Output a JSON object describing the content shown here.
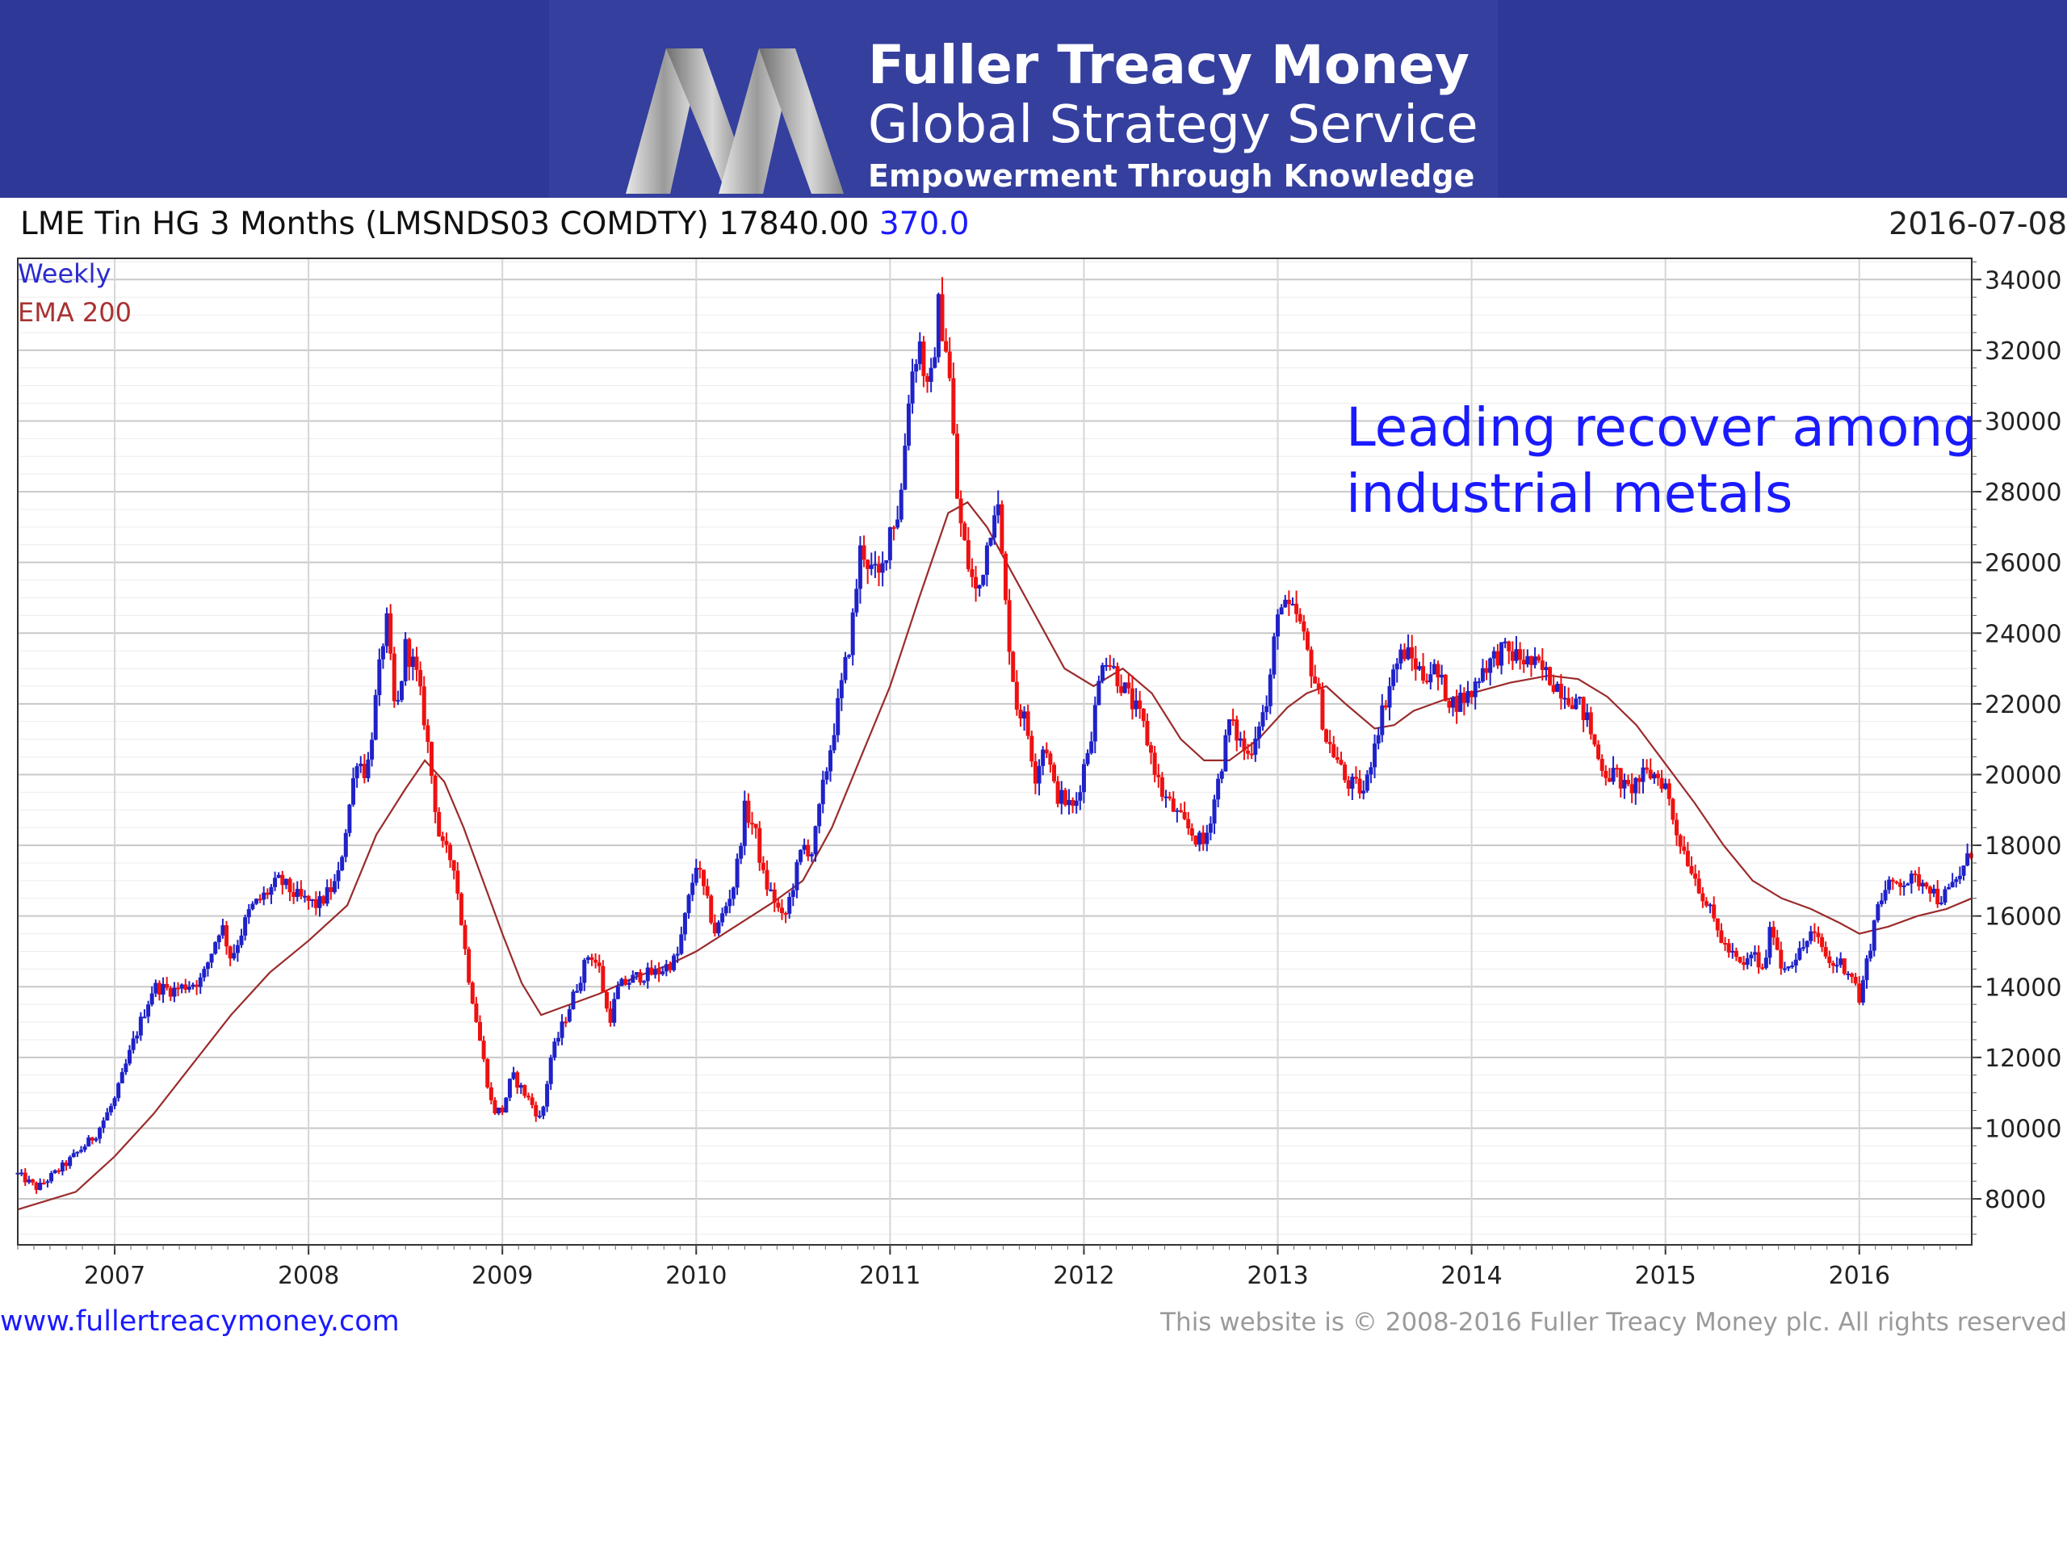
{
  "banner": {
    "brand_name": "Fuller Treacy Money",
    "service": "Global Strategy Service",
    "tagline": "Empowerment Through Knowledge",
    "logo_icon": "ftm-m-logo-icon"
  },
  "chart_header": {
    "instrument": "LME Tin HG  3 Months (LMSNDS03 COMDTY)",
    "last_price": "17840.00",
    "change": "370.0",
    "date": "2016-07-08"
  },
  "chart_data": {
    "type": "candlestick",
    "legend": {
      "period": "Weekly",
      "indicator": "EMA 200"
    },
    "annotation": [
      "Leading recover among",
      "industrial metals"
    ],
    "x_range": [
      2006.5,
      2016.58
    ],
    "ylim": [
      6700,
      34600
    ],
    "y_ticks": [
      8000,
      10000,
      12000,
      14000,
      16000,
      18000,
      20000,
      22000,
      24000,
      26000,
      28000,
      30000,
      32000,
      34000
    ],
    "x_ticks": [
      {
        "label": "2007",
        "value": 2007.0
      },
      {
        "label": "2008",
        "value": 2008.0
      },
      {
        "label": "2009",
        "value": 2009.0
      },
      {
        "label": "2010",
        "value": 2010.0
      },
      {
        "label": "2011",
        "value": 2011.0
      },
      {
        "label": "2012",
        "value": 2012.0
      },
      {
        "label": "2013",
        "value": 2013.0
      },
      {
        "label": "2014",
        "value": 2014.0
      },
      {
        "label": "2015",
        "value": 2015.0
      },
      {
        "label": "2016",
        "value": 2016.0
      }
    ],
    "colors": {
      "up": "#1f22c8",
      "down": "#ee1111",
      "ema": "#9b2b2b"
    },
    "price_path": [
      [
        2006.5,
        8700
      ],
      [
        2006.6,
        8300
      ],
      [
        2006.75,
        9000
      ],
      [
        2006.9,
        9800
      ],
      [
        2007.0,
        10800
      ],
      [
        2007.1,
        12500
      ],
      [
        2007.2,
        14000
      ],
      [
        2007.3,
        13900
      ],
      [
        2007.45,
        14200
      ],
      [
        2007.55,
        15800
      ],
      [
        2007.6,
        14800
      ],
      [
        2007.7,
        16200
      ],
      [
        2007.85,
        17000
      ],
      [
        2007.95,
        16500
      ],
      [
        2008.05,
        16300
      ],
      [
        2008.15,
        17000
      ],
      [
        2008.25,
        20500
      ],
      [
        2008.3,
        20000
      ],
      [
        2008.4,
        24500
      ],
      [
        2008.45,
        21500
      ],
      [
        2008.5,
        23600
      ],
      [
        2008.55,
        23000
      ],
      [
        2008.6,
        21500
      ],
      [
        2008.68,
        18000
      ],
      [
        2008.75,
        17500
      ],
      [
        2008.82,
        14500
      ],
      [
        2008.9,
        12000
      ],
      [
        2008.95,
        10500
      ],
      [
        2009.0,
        10500
      ],
      [
        2009.05,
        11500
      ],
      [
        2009.15,
        10700
      ],
      [
        2009.2,
        10200
      ],
      [
        2009.25,
        12000
      ],
      [
        2009.35,
        13500
      ],
      [
        2009.45,
        15000
      ],
      [
        2009.5,
        14500
      ],
      [
        2009.55,
        13000
      ],
      [
        2009.6,
        14000
      ],
      [
        2009.7,
        14300
      ],
      [
        2009.8,
        14400
      ],
      [
        2009.9,
        14800
      ],
      [
        2010.0,
        17500
      ],
      [
        2010.05,
        16500
      ],
      [
        2010.1,
        15500
      ],
      [
        2010.2,
        17000
      ],
      [
        2010.25,
        19000
      ],
      [
        2010.3,
        18500
      ],
      [
        2010.35,
        17000
      ],
      [
        2010.4,
        16500
      ],
      [
        2010.45,
        15800
      ],
      [
        2010.55,
        18000
      ],
      [
        2010.6,
        17800
      ],
      [
        2010.65,
        19500
      ],
      [
        2010.7,
        21000
      ],
      [
        2010.75,
        22500
      ],
      [
        2010.8,
        24000
      ],
      [
        2010.85,
        26500
      ],
      [
        2010.9,
        25800
      ],
      [
        2010.95,
        25500
      ],
      [
        2011.0,
        27000
      ],
      [
        2011.05,
        27500
      ],
      [
        2011.1,
        31000
      ],
      [
        2011.15,
        32300
      ],
      [
        2011.2,
        30500
      ],
      [
        2011.25,
        33200
      ],
      [
        2011.3,
        31800
      ],
      [
        2011.35,
        27500
      ],
      [
        2011.4,
        26000
      ],
      [
        2011.45,
        25000
      ],
      [
        2011.5,
        26500
      ],
      [
        2011.55,
        28000
      ],
      [
        2011.6,
        24500
      ],
      [
        2011.65,
        22000
      ],
      [
        2011.7,
        21500
      ],
      [
        2011.75,
        20000
      ],
      [
        2011.8,
        21000
      ],
      [
        2011.85,
        19500
      ],
      [
        2011.95,
        19000
      ],
      [
        2012.05,
        21500
      ],
      [
        2012.1,
        23500
      ],
      [
        2012.15,
        23000
      ],
      [
        2012.2,
        22500
      ],
      [
        2012.25,
        22000
      ],
      [
        2012.3,
        21500
      ],
      [
        2012.35,
        20500
      ],
      [
        2012.4,
        19500
      ],
      [
        2012.5,
        18700
      ],
      [
        2012.58,
        18200
      ],
      [
        2012.62,
        18000
      ],
      [
        2012.7,
        20000
      ],
      [
        2012.75,
        21500
      ],
      [
        2012.8,
        21000
      ],
      [
        2012.85,
        20500
      ],
      [
        2012.9,
        21500
      ],
      [
        2012.95,
        22000
      ],
      [
        2013.0,
        24800
      ],
      [
        2013.05,
        24600
      ],
      [
        2013.1,
        24500
      ],
      [
        2013.15,
        23500
      ],
      [
        2013.2,
        22500
      ],
      [
        2013.25,
        21000
      ],
      [
        2013.3,
        20500
      ],
      [
        2013.35,
        19800
      ],
      [
        2013.45,
        19500
      ],
      [
        2013.5,
        21000
      ],
      [
        2013.55,
        22000
      ],
      [
        2013.6,
        23000
      ],
      [
        2013.65,
        23500
      ],
      [
        2013.7,
        23200
      ],
      [
        2013.75,
        22800
      ],
      [
        2013.8,
        23000
      ],
      [
        2013.85,
        22500
      ],
      [
        2013.9,
        22000
      ],
      [
        2014.0,
        22300
      ],
      [
        2014.05,
        23000
      ],
      [
        2014.1,
        23200
      ],
      [
        2014.15,
        23500
      ],
      [
        2014.25,
        23300
      ],
      [
        2014.35,
        23000
      ],
      [
        2014.45,
        22500
      ],
      [
        2014.55,
        22000
      ],
      [
        2014.6,
        21500
      ],
      [
        2014.65,
        20500
      ],
      [
        2014.7,
        20000
      ],
      [
        2014.75,
        20000
      ],
      [
        2014.8,
        19500
      ],
      [
        2014.85,
        19800
      ],
      [
        2014.9,
        20000
      ],
      [
        2014.95,
        20000
      ],
      [
        2015.0,
        19700
      ],
      [
        2015.05,
        18500
      ],
      [
        2015.1,
        17800
      ],
      [
        2015.2,
        16500
      ],
      [
        2015.3,
        15200
      ],
      [
        2015.4,
        14500
      ],
      [
        2015.45,
        15000
      ],
      [
        2015.5,
        14400
      ],
      [
        2015.55,
        15800
      ],
      [
        2015.6,
        14500
      ],
      [
        2015.7,
        15000
      ],
      [
        2015.75,
        15500
      ],
      [
        2015.8,
        15200
      ],
      [
        2015.85,
        14600
      ],
      [
        2015.9,
        14700
      ],
      [
        2015.97,
        14300
      ],
      [
        2016.0,
        13600
      ],
      [
        2016.05,
        15000
      ],
      [
        2016.1,
        16500
      ],
      [
        2016.15,
        16800
      ],
      [
        2016.2,
        17000
      ],
      [
        2016.25,
        17000
      ],
      [
        2016.3,
        17000
      ],
      [
        2016.35,
        17000
      ],
      [
        2016.4,
        16500
      ],
      [
        2016.45,
        16600
      ],
      [
        2016.5,
        17000
      ],
      [
        2016.55,
        17500
      ],
      [
        2016.58,
        17840
      ]
    ],
    "ema_200": [
      [
        2006.5,
        7700
      ],
      [
        2006.8,
        8200
      ],
      [
        2007.0,
        9200
      ],
      [
        2007.2,
        10400
      ],
      [
        2007.4,
        11800
      ],
      [
        2007.6,
        13200
      ],
      [
        2007.8,
        14400
      ],
      [
        2008.0,
        15300
      ],
      [
        2008.2,
        16300
      ],
      [
        2008.35,
        18300
      ],
      [
        2008.5,
        19600
      ],
      [
        2008.6,
        20400
      ],
      [
        2008.7,
        19800
      ],
      [
        2008.8,
        18500
      ],
      [
        2008.9,
        17000
      ],
      [
        2009.0,
        15500
      ],
      [
        2009.1,
        14100
      ],
      [
        2009.2,
        13200
      ],
      [
        2009.3,
        13400
      ],
      [
        2009.5,
        13800
      ],
      [
        2009.7,
        14300
      ],
      [
        2009.85,
        14600
      ],
      [
        2010.0,
        15000
      ],
      [
        2010.2,
        15700
      ],
      [
        2010.4,
        16400
      ],
      [
        2010.55,
        17000
      ],
      [
        2010.7,
        18500
      ],
      [
        2010.85,
        20500
      ],
      [
        2011.0,
        22500
      ],
      [
        2011.15,
        25000
      ],
      [
        2011.3,
        27400
      ],
      [
        2011.4,
        27700
      ],
      [
        2011.5,
        27000
      ],
      [
        2011.6,
        26000
      ],
      [
        2011.7,
        25000
      ],
      [
        2011.8,
        24000
      ],
      [
        2011.9,
        23000
      ],
      [
        2012.05,
        22500
      ],
      [
        2012.2,
        23000
      ],
      [
        2012.35,
        22300
      ],
      [
        2012.5,
        21000
      ],
      [
        2012.62,
        20400
      ],
      [
        2012.75,
        20400
      ],
      [
        2012.9,
        21000
      ],
      [
        2013.05,
        21900
      ],
      [
        2013.15,
        22300
      ],
      [
        2013.25,
        22500
      ],
      [
        2013.35,
        22000
      ],
      [
        2013.5,
        21300
      ],
      [
        2013.6,
        21400
      ],
      [
        2013.7,
        21800
      ],
      [
        2013.85,
        22100
      ],
      [
        2014.0,
        22300
      ],
      [
        2014.2,
        22600
      ],
      [
        2014.4,
        22800
      ],
      [
        2014.55,
        22700
      ],
      [
        2014.7,
        22200
      ],
      [
        2014.85,
        21400
      ],
      [
        2015.0,
        20300
      ],
      [
        2015.15,
        19200
      ],
      [
        2015.3,
        18000
      ],
      [
        2015.45,
        17000
      ],
      [
        2015.6,
        16500
      ],
      [
        2015.75,
        16200
      ],
      [
        2015.9,
        15800
      ],
      [
        2016.0,
        15500
      ],
      [
        2016.15,
        15700
      ],
      [
        2016.3,
        16000
      ],
      [
        2016.45,
        16200
      ],
      [
        2016.58,
        16500
      ]
    ]
  },
  "footer": {
    "url": "www.fullertreacymoney.com",
    "copyright": "This website is © 2008-2016 Fuller Treacy Money plc. All rights reserved"
  }
}
